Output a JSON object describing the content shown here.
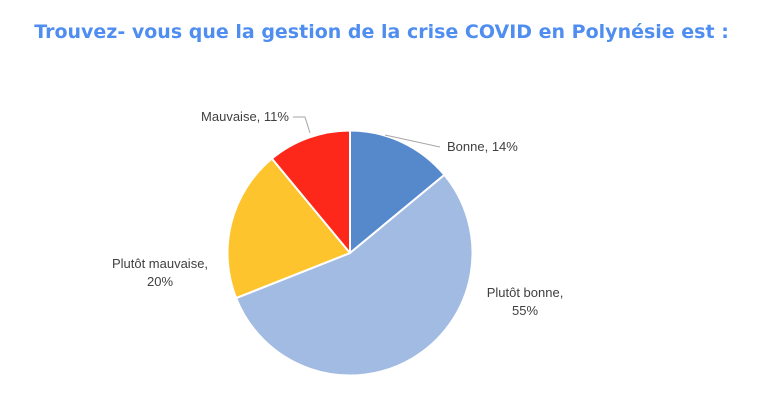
{
  "chart_data": {
    "type": "pie",
    "title": "Trouvez- vous que la gestion de la crise COVID en Polynésie est :",
    "categories": [
      "Bonne",
      "Plutôt bonne",
      "Plutôt mauvaise",
      "Mauvaise"
    ],
    "values": [
      14,
      55,
      20,
      11
    ],
    "unit": "%",
    "colors": [
      "#5589cc",
      "#a2bbe2",
      "#fdc42e",
      "#fd2819"
    ],
    "labels": [
      {
        "lines": [
          "Bonne, 14%"
        ]
      },
      {
        "lines": [
          "Plutôt bonne,",
          "55%"
        ]
      },
      {
        "lines": [
          "Plutôt mauvaise,",
          "20%"
        ]
      },
      {
        "lines": [
          "Mauvaise, 11%"
        ]
      }
    ],
    "start_angle_deg": 0,
    "direction": "clockwise",
    "legend": "none",
    "data_labels": "category, percentage"
  }
}
